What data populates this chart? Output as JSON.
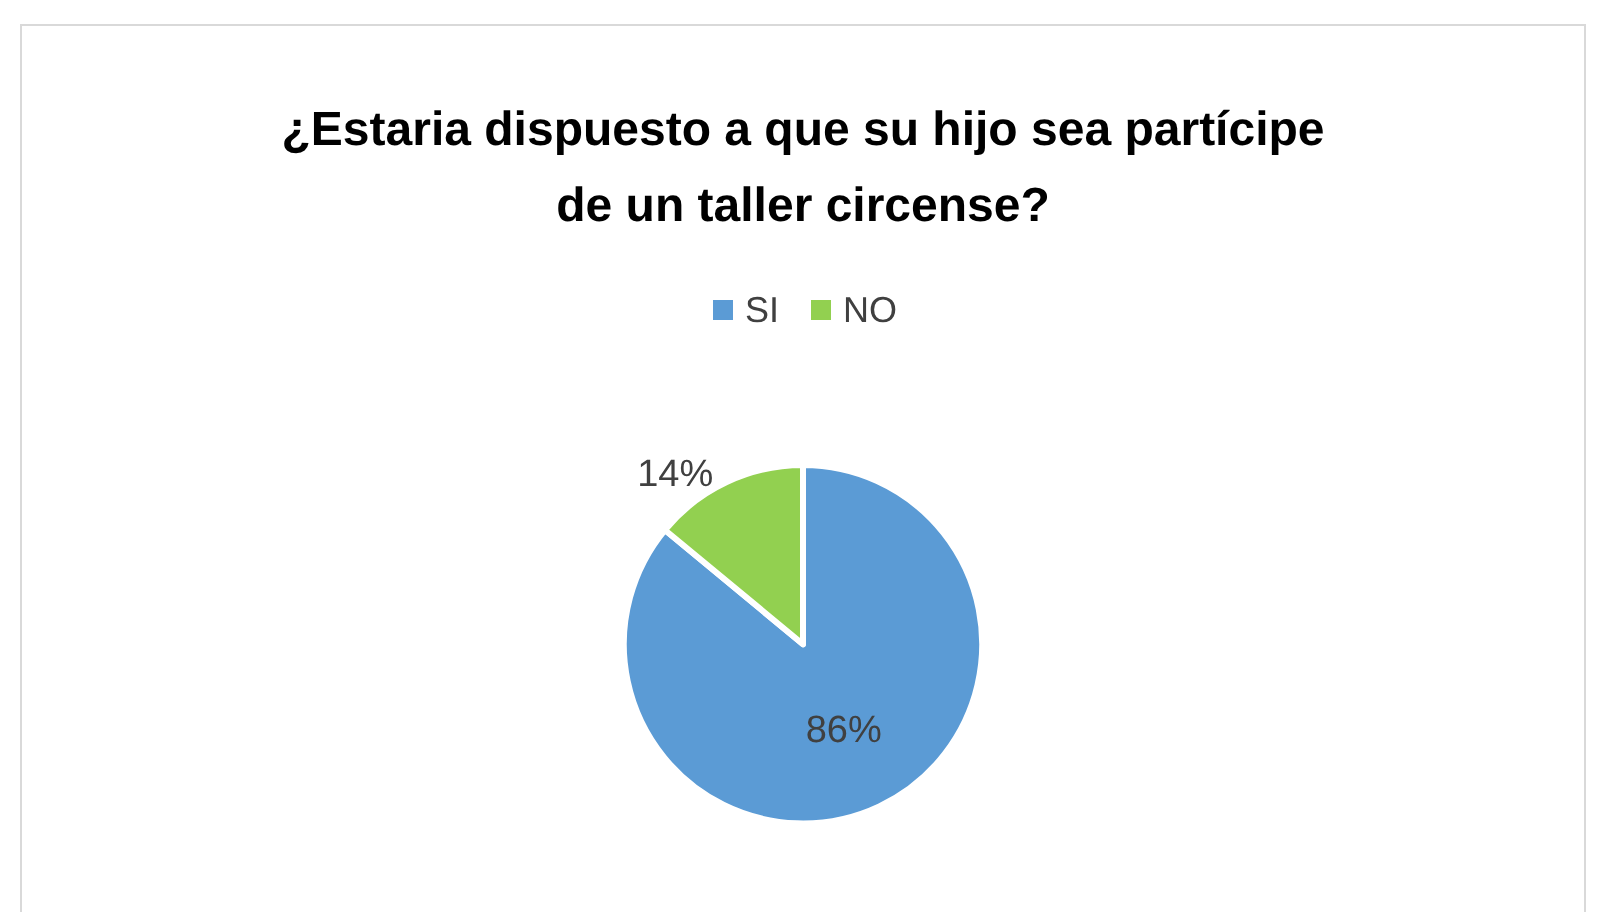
{
  "chart_data": {
    "type": "pie",
    "title": "¿Estaria dispuesto a que su hijo sea partícipe\nde un taller circense?",
    "categories": [
      "SI",
      "NO"
    ],
    "values": [
      86,
      14
    ],
    "colors": [
      "#5b9bd5",
      "#92d050"
    ],
    "value_labels": [
      "86%",
      "14%"
    ],
    "legend": "top"
  }
}
